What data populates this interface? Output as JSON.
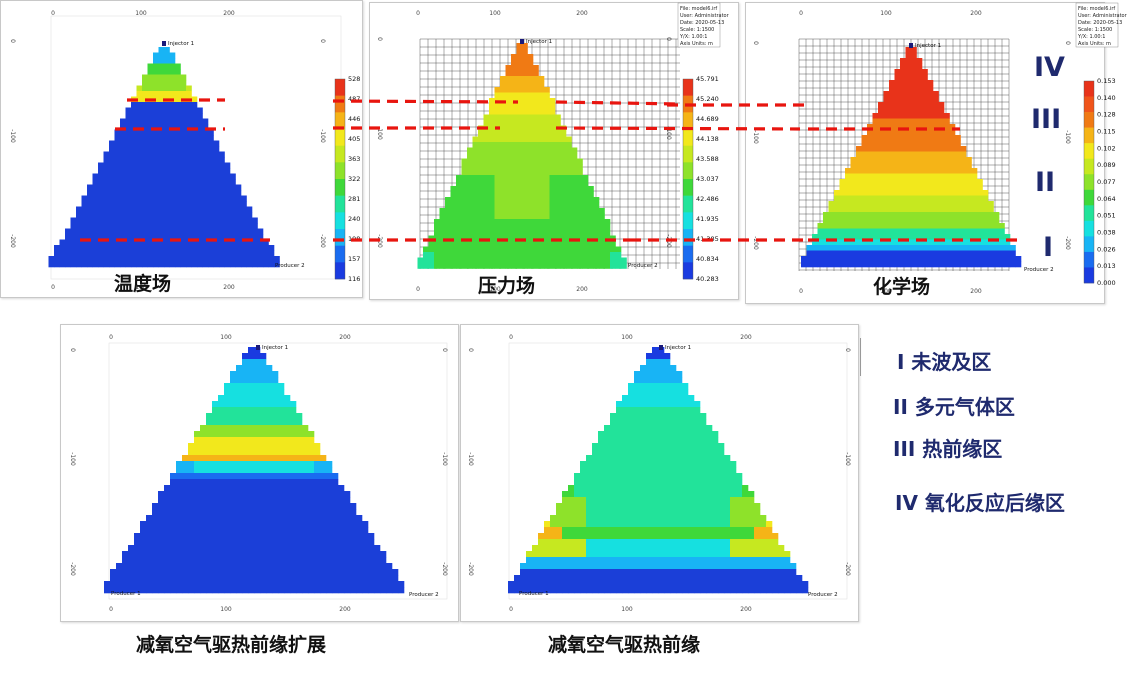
{
  "captions": {
    "temperature": "温度场",
    "pressure": "压力场",
    "chemical": "化学场",
    "expansion": "减氧空气驱热前缘扩展",
    "front": "减氧空气驱热前缘"
  },
  "zones": [
    "IV",
    "III",
    "II",
    "I"
  ],
  "legend": [
    "I 未波及区",
    "II 多元气体区",
    "III 热前缘区",
    "IV 氧化反应后缘区"
  ],
  "wells": {
    "injector": "Injector 1",
    "producer": "Producer 2",
    "producer1": "Producer 1"
  },
  "axis_ticks": {
    "x": [
      "0",
      "100",
      "200"
    ],
    "y": [
      "0",
      "-100",
      "-200"
    ]
  },
  "temperature_colorbar": [
    "528",
    "487",
    "446",
    "405",
    "363",
    "322",
    "281",
    "240",
    "198",
    "157",
    "116"
  ],
  "pressure_colorbar": [
    "45.791",
    "45.240",
    "44.689",
    "44.138",
    "43.588",
    "43.037",
    "42.486",
    "41.935",
    "41.385",
    "40.834",
    "40.283"
  ],
  "chemical_colorbar": [
    "0.153",
    "0.140",
    "0.128",
    "0.115",
    "0.102",
    "0.089",
    "0.077",
    "0.064",
    "0.051",
    "0.038",
    "0.026",
    "0.013",
    "0.000"
  ],
  "info_pressure": [
    "File: model6.irf",
    "User: Administrator",
    "Date: 2020-05-13",
    "Scale: 1:1500",
    "Y/X: 1.00:1",
    "Axis Units: m"
  ],
  "info_chemical": [
    "File: model6.irf",
    "User: Administrator",
    "Date: 2020-05-13",
    "Scale: 1:1500",
    "Y/X: 1.00:1",
    "Axis Units: m"
  ],
  "colors": {
    "zone_line": "#e8150f",
    "zone_text": "#1f2a6e",
    "ramp": [
      "#1a3be0",
      "#1a6cf0",
      "#18b4f5",
      "#16e0e0",
      "#22e39a",
      "#3fd83a",
      "#8ee22a",
      "#c6e820",
      "#f2e81c",
      "#f5b417",
      "#f07a14",
      "#e8331a"
    ]
  }
}
